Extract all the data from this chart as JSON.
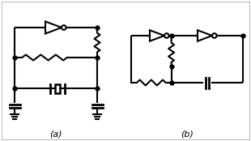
{
  "bg_color": "#ffffff",
  "line_color": "#000000",
  "line_width": 1.5,
  "label_a": "(a)",
  "label_b": "(b)",
  "figsize": [
    3.1,
    1.74
  ],
  "dpi": 100
}
